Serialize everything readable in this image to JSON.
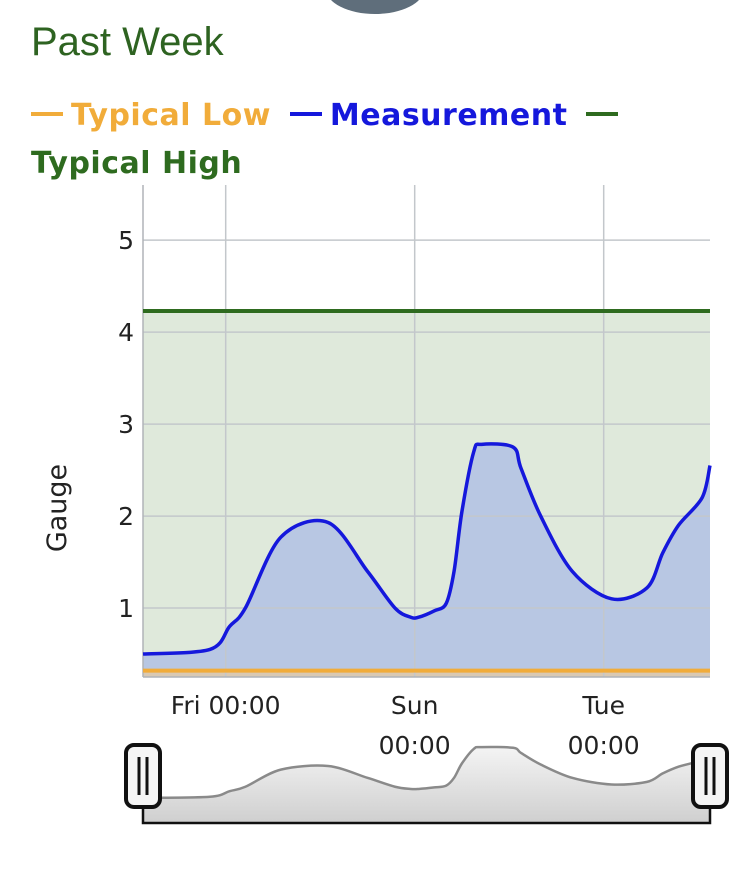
{
  "title": "Past Week",
  "colors": {
    "low": "#f1ac3a",
    "measurement": "#1518dc",
    "high": "#2e6b1f",
    "band_fill": "#dfe9db",
    "area_fill": "#b8c7e3"
  },
  "legend": [
    {
      "label": "Typical Low",
      "color": "#f1ac3a"
    },
    {
      "label": "Measurement",
      "color": "#1518dc"
    },
    {
      "label": "Typical High",
      "color": "#2e6b1f"
    }
  ],
  "chart_data": {
    "type": "area",
    "ylabel": "Gauge",
    "ylim": [
      0.25,
      5.6
    ],
    "yticks": [
      1,
      2,
      3,
      4,
      5
    ],
    "x_axis": {
      "range_hours": [
        -21,
        123
      ],
      "ticks": [
        {
          "at": 0,
          "label": [
            "Fri 00:00"
          ]
        },
        {
          "at": 48,
          "label": [
            "Sun",
            "00:00"
          ]
        },
        {
          "at": 96,
          "label": [
            "Tue",
            "00:00"
          ]
        }
      ]
    },
    "grid": true,
    "series": [
      {
        "name": "Typical Low",
        "constant": 0.32
      },
      {
        "name": "Measurement",
        "x": [
          -21,
          -4,
          1,
          5,
          14,
          26,
          36,
          43,
          47,
          49,
          53,
          56,
          58,
          60,
          63,
          65,
          73,
          75,
          80,
          88,
          98,
          107,
          111,
          115,
          121,
          123
        ],
        "y": [
          0.5,
          0.55,
          0.8,
          1.0,
          1.77,
          1.93,
          1.4,
          1.0,
          0.9,
          0.9,
          0.97,
          1.05,
          1.4,
          2.05,
          2.7,
          2.78,
          2.75,
          2.52,
          2.0,
          1.4,
          1.1,
          1.22,
          1.6,
          1.9,
          2.2,
          2.55
        ]
      },
      {
        "name": "Typical High",
        "constant": 4.23
      }
    ]
  },
  "navigator": {
    "left_handle_icon": "drag-handle-icon",
    "right_handle_icon": "drag-handle-icon"
  }
}
